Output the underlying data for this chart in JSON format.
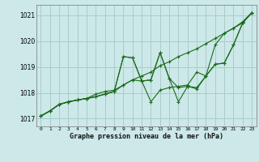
{
  "xlabel": "Graphe pression niveau de la mer (hPa)",
  "bg_color": "#cce8e8",
  "grid_color": "#aacccc",
  "line_color": "#1a6b1a",
  "xlim": [
    -0.5,
    23.5
  ],
  "ylim": [
    1016.7,
    1021.4
  ],
  "yticks": [
    1017,
    1018,
    1019,
    1020,
    1021
  ],
  "xticks": [
    0,
    1,
    2,
    3,
    4,
    5,
    6,
    7,
    8,
    9,
    10,
    11,
    12,
    13,
    14,
    15,
    16,
    17,
    18,
    19,
    20,
    21,
    22,
    23
  ],
  "series": [
    [
      1017.1,
      1017.3,
      1017.55,
      1017.65,
      1017.72,
      1017.78,
      1017.85,
      1017.95,
      1018.05,
      1018.3,
      1018.5,
      1018.65,
      1018.8,
      1019.05,
      1019.2,
      1019.4,
      1019.55,
      1019.7,
      1019.9,
      1020.1,
      1020.3,
      1020.5,
      1020.75,
      1021.1
    ],
    [
      1017.1,
      1017.3,
      1017.55,
      1017.65,
      1017.72,
      1017.78,
      1017.85,
      1017.95,
      1018.05,
      1019.4,
      1019.35,
      1018.45,
      1018.5,
      1019.55,
      1018.55,
      1017.65,
      1018.25,
      1018.2,
      1018.65,
      1019.1,
      1019.15,
      1019.85,
      1020.7,
      1021.1
    ],
    [
      1017.1,
      1017.3,
      1017.55,
      1017.65,
      1017.72,
      1017.78,
      1017.85,
      1017.95,
      1018.05,
      1019.4,
      1019.35,
      1018.45,
      1018.5,
      1019.55,
      1018.55,
      1018.2,
      1018.25,
      1018.15,
      1018.65,
      1019.1,
      1019.15,
      1019.85,
      1020.7,
      1021.1
    ],
    [
      1017.1,
      1017.3,
      1017.55,
      1017.65,
      1017.72,
      1017.78,
      1017.95,
      1018.05,
      1018.1,
      1018.3,
      1018.5,
      1018.45,
      1017.65,
      1018.1,
      1018.2,
      1018.25,
      1018.3,
      1018.8,
      1018.65,
      1019.85,
      1020.3,
      1020.5,
      1020.7,
      1021.1
    ]
  ]
}
